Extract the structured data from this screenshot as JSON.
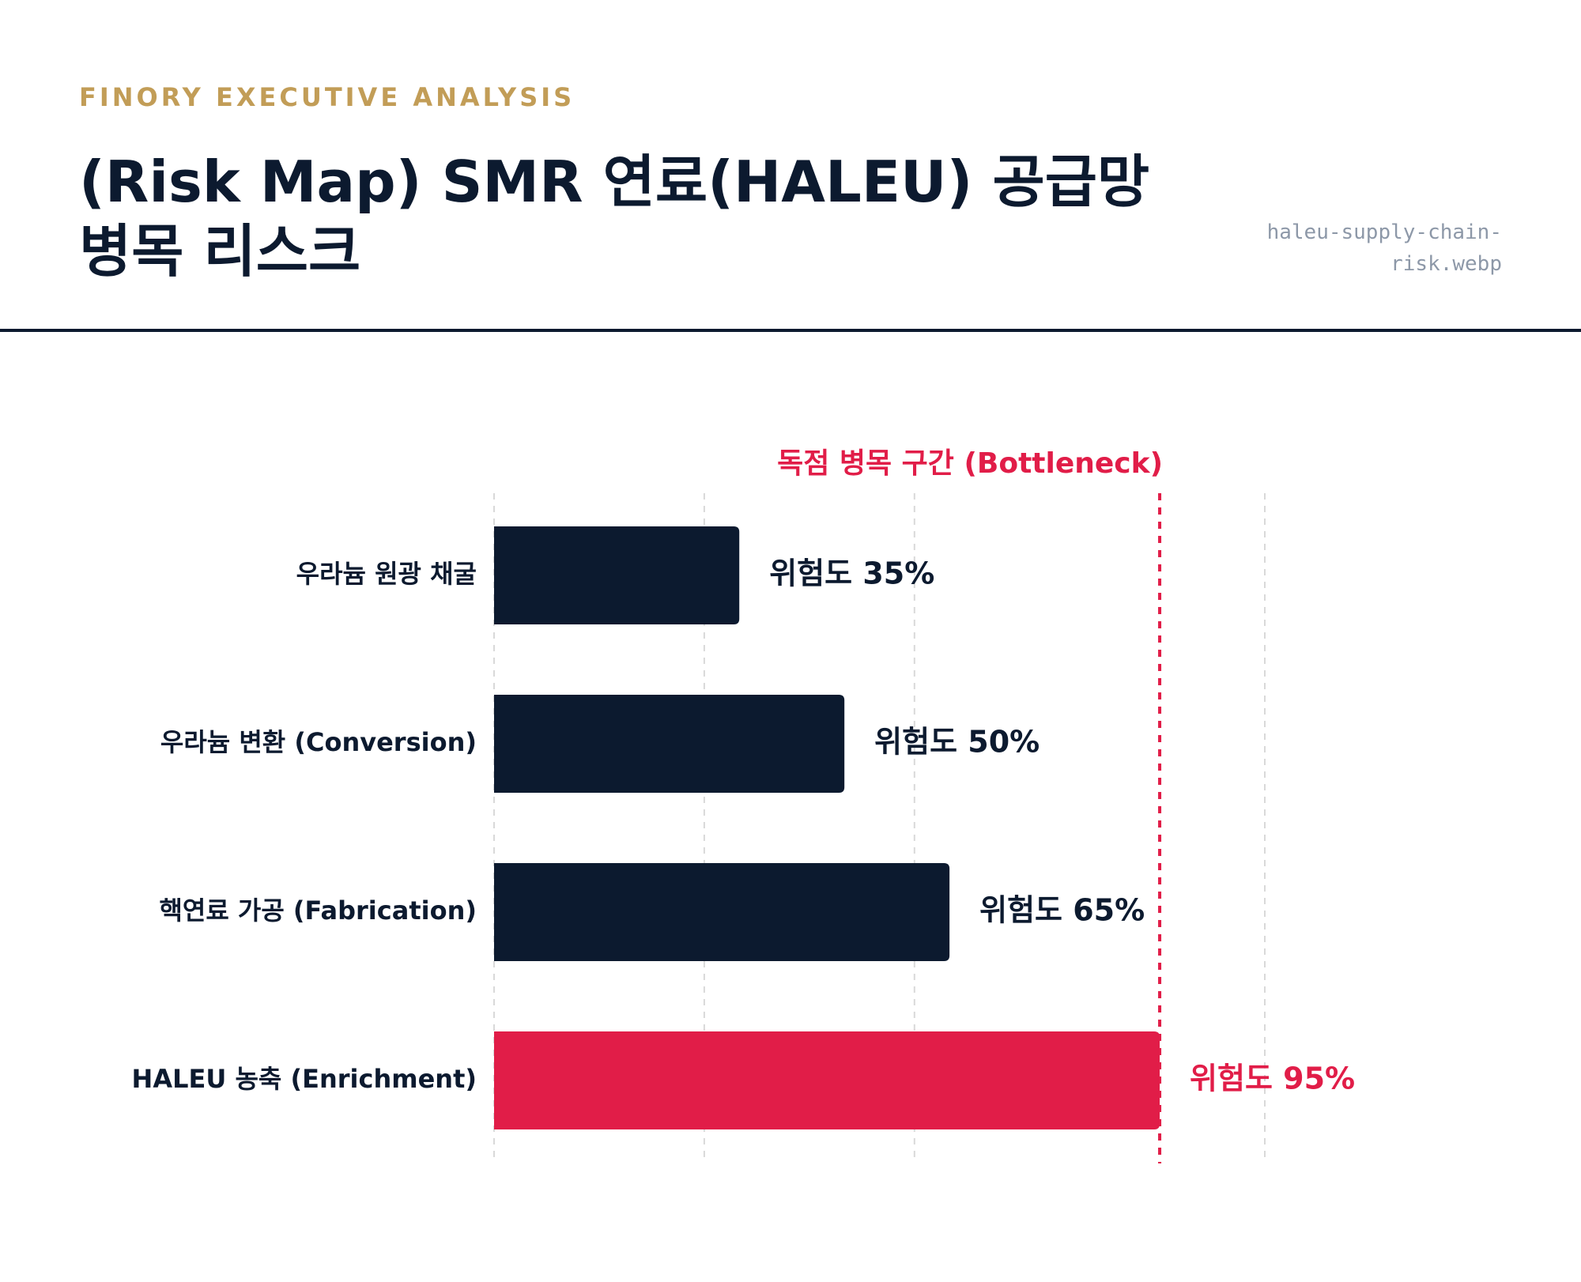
{
  "header": {
    "eyebrow": "FINORY EXECUTIVE ANALYSIS",
    "title": "(Risk Map) SMR 연료(HALEU) 공급망 병목 리스크",
    "filename": "haleu-supply-chain-risk.webp"
  },
  "colors": {
    "navy": "#0c1a2f",
    "accent_red": "#e11d48",
    "gold": "#c29d57",
    "grid": "#d9d9d9"
  },
  "chart_data": {
    "type": "bar",
    "orientation": "horizontal",
    "categories": [
      "우라늄 원광 채굴",
      "우라늄 변환 (Conversion)",
      "핵연료 가공 (Fabrication)",
      "HALEU 농축 (Enrichment)"
    ],
    "series": [
      {
        "values": [
          35,
          50,
          65,
          95
        ]
      }
    ],
    "data_labels": [
      "위험도 35%",
      "위험도 50%",
      "위험도 65%",
      "위험도 95%"
    ],
    "highlight_index": 3,
    "xlim": [
      0,
      110
    ],
    "gridlines": [
      0,
      30,
      60,
      110
    ],
    "grid": true,
    "reference_line": {
      "value": 95,
      "label": "독점 병목 구간 (Bottleneck)",
      "style": "dashed"
    }
  }
}
